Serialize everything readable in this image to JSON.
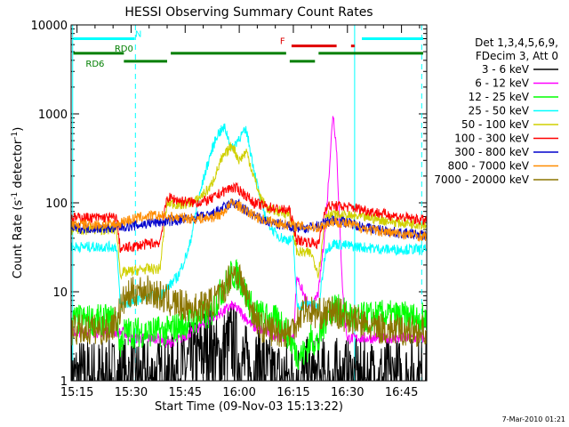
{
  "chart_data": {
    "type": "line",
    "title": "HESSI Observing Summary Count Rates",
    "xlabel": "Start Time (09-Nov-03 15:13:22)",
    "ylabel_main": "Count Rate (s",
    "ylabel_sup1": "-1",
    "ylabel_mid": " detector",
    "ylabel_sup2": "-1",
    "ylabel_end": ")",
    "y_scale": "log",
    "xlim_minutes": [
      13.37,
      112
    ],
    "ylim": [
      1,
      10000
    ],
    "x_ticks": [
      {
        "m": 15,
        "label": "15:15"
      },
      {
        "m": 30,
        "label": "15:30"
      },
      {
        "m": 45,
        "label": "15:45"
      },
      {
        "m": 60,
        "label": "16:00"
      },
      {
        "m": 75,
        "label": "16:15"
      },
      {
        "m": 90,
        "label": "16:30"
      },
      {
        "m": 105,
        "label": "16:45"
      }
    ],
    "y_ticks": [
      {
        "v": 1,
        "label": "1"
      },
      {
        "v": 10,
        "label": "10"
      },
      {
        "v": 100,
        "label": "100"
      },
      {
        "v": 1000,
        "label": "1000"
      },
      {
        "v": 10000,
        "label": "10000"
      }
    ],
    "legend_header": [
      "Det 1,3,4,5,6,9,",
      "FDecim 3, Att 0"
    ],
    "legend_placement": "right",
    "series": [
      {
        "name": "3 - 6 keV",
        "color": "#000000",
        "points": [
          [
            14,
            1
          ],
          [
            40,
            1
          ],
          [
            42,
            1.2
          ],
          [
            48,
            1.6
          ],
          [
            50,
            2.2
          ],
          [
            52,
            2.6
          ],
          [
            54,
            1.6
          ],
          [
            56,
            2.2
          ],
          [
            58,
            2.8
          ],
          [
            60,
            1.7
          ],
          [
            62,
            1.4
          ],
          [
            64,
            1.2
          ],
          [
            66,
            1.6
          ],
          [
            68,
            1.1
          ],
          [
            70,
            1
          ],
          [
            112,
            1
          ]
        ]
      },
      {
        "name": "6 - 12 keV",
        "color": "#ff00ff",
        "points": [
          [
            14,
            3.5
          ],
          [
            28,
            3.5
          ],
          [
            30,
            3
          ],
          [
            38,
            3
          ],
          [
            40,
            2.6
          ],
          [
            44,
            3
          ],
          [
            48,
            3.8
          ],
          [
            52,
            5
          ],
          [
            55,
            5.8
          ],
          [
            58,
            7
          ],
          [
            60,
            6.2
          ],
          [
            64,
            4
          ],
          [
            68,
            3.5
          ],
          [
            72,
            3
          ],
          [
            75,
            3
          ],
          [
            76,
            15
          ],
          [
            78,
            9
          ],
          [
            80,
            6
          ],
          [
            82,
            10
          ],
          [
            84,
            60
          ],
          [
            85,
            250
          ],
          [
            86,
            1050
          ],
          [
            87,
            400
          ],
          [
            88,
            40
          ],
          [
            89,
            6
          ],
          [
            90,
            3
          ],
          [
            112,
            3
          ]
        ]
      },
      {
        "name": "12 - 25 keV",
        "color": "#00ff00",
        "points": [
          [
            14,
            4.8
          ],
          [
            26,
            4.8
          ],
          [
            27,
            2.5
          ],
          [
            28,
            3.5
          ],
          [
            30,
            3.5
          ],
          [
            40,
            3.6
          ],
          [
            44,
            4.2
          ],
          [
            48,
            5
          ],
          [
            52,
            5.6
          ],
          [
            55,
            10
          ],
          [
            58,
            16
          ],
          [
            60,
            15
          ],
          [
            62,
            9
          ],
          [
            64,
            6
          ],
          [
            68,
            5
          ],
          [
            72,
            4.5
          ],
          [
            76,
            2
          ],
          [
            78,
            2
          ],
          [
            80,
            3
          ],
          [
            82,
            2.6
          ],
          [
            84,
            5
          ],
          [
            86,
            7
          ],
          [
            88,
            6
          ],
          [
            92,
            5
          ],
          [
            100,
            5.4
          ],
          [
            112,
            5
          ]
        ]
      },
      {
        "name": "25 - 50 keV",
        "color": "#00ffff",
        "points": [
          [
            14,
            32
          ],
          [
            26,
            32
          ],
          [
            27,
            7
          ],
          [
            30,
            7.5
          ],
          [
            33,
            8.5
          ],
          [
            38,
            9
          ],
          [
            40,
            11
          ],
          [
            43,
            15
          ],
          [
            46,
            30
          ],
          [
            48,
            80
          ],
          [
            50,
            180
          ],
          [
            52,
            350
          ],
          [
            54,
            600
          ],
          [
            56,
            700
          ],
          [
            58,
            400
          ],
          [
            60,
            550
          ],
          [
            62,
            650
          ],
          [
            64,
            250
          ],
          [
            66,
            100
          ],
          [
            68,
            60
          ],
          [
            70,
            45
          ],
          [
            72,
            40
          ],
          [
            74,
            38
          ],
          [
            75,
            38
          ],
          [
            76,
            7
          ],
          [
            78,
            7
          ],
          [
            80,
            7.5
          ],
          [
            82,
            6.5
          ],
          [
            84,
            30
          ],
          [
            86,
            35
          ],
          [
            90,
            33
          ],
          [
            100,
            30
          ],
          [
            112,
            30
          ]
        ]
      },
      {
        "name": "50 - 100 keV",
        "color": "#d0d000",
        "points": [
          [
            14,
            50
          ],
          [
            26,
            50
          ],
          [
            27,
            16
          ],
          [
            30,
            17
          ],
          [
            34,
            18
          ],
          [
            38,
            18
          ],
          [
            40,
            100
          ],
          [
            44,
            95
          ],
          [
            48,
            105
          ],
          [
            52,
            150
          ],
          [
            55,
            300
          ],
          [
            58,
            450
          ],
          [
            60,
            300
          ],
          [
            62,
            380
          ],
          [
            64,
            200
          ],
          [
            66,
            110
          ],
          [
            68,
            85
          ],
          [
            72,
            78
          ],
          [
            74,
            75
          ],
          [
            76,
            28
          ],
          [
            80,
            27
          ],
          [
            82,
            16
          ],
          [
            84,
            75
          ],
          [
            88,
            72
          ],
          [
            96,
            68
          ],
          [
            104,
            60
          ],
          [
            112,
            57
          ]
        ]
      },
      {
        "name": "100 - 300 keV",
        "color": "#ff0000",
        "points": [
          [
            14,
            68
          ],
          [
            26,
            68
          ],
          [
            27,
            30
          ],
          [
            30,
            32
          ],
          [
            34,
            34
          ],
          [
            38,
            36
          ],
          [
            40,
            115
          ],
          [
            44,
            105
          ],
          [
            48,
            100
          ],
          [
            52,
            108
          ],
          [
            55,
            130
          ],
          [
            58,
            150
          ],
          [
            60,
            140
          ],
          [
            62,
            120
          ],
          [
            64,
            100
          ],
          [
            68,
            90
          ],
          [
            72,
            83
          ],
          [
            74,
            82
          ],
          [
            76,
            38
          ],
          [
            80,
            36
          ],
          [
            82,
            34
          ],
          [
            84,
            92
          ],
          [
            88,
            92
          ],
          [
            92,
            88
          ],
          [
            100,
            75
          ],
          [
            106,
            68
          ],
          [
            112,
            63
          ]
        ]
      },
      {
        "name": "300 - 800 keV",
        "color": "#0000cc",
        "points": [
          [
            14,
            52
          ],
          [
            26,
            52
          ],
          [
            28,
            54
          ],
          [
            32,
            56
          ],
          [
            36,
            60
          ],
          [
            40,
            62
          ],
          [
            44,
            64
          ],
          [
            48,
            68
          ],
          [
            52,
            72
          ],
          [
            55,
            85
          ],
          [
            58,
            100
          ],
          [
            60,
            95
          ],
          [
            62,
            80
          ],
          [
            66,
            65
          ],
          [
            70,
            58
          ],
          [
            74,
            54
          ],
          [
            78,
            52
          ],
          [
            82,
            55
          ],
          [
            86,
            65
          ],
          [
            90,
            60
          ],
          [
            96,
            52
          ],
          [
            104,
            46
          ],
          [
            112,
            43
          ]
        ]
      },
      {
        "name": "800 - 7000 keV",
        "color": "#ff8c00",
        "points": [
          [
            14,
            57
          ],
          [
            26,
            57
          ],
          [
            28,
            62
          ],
          [
            32,
            68
          ],
          [
            36,
            72
          ],
          [
            40,
            70
          ],
          [
            44,
            68
          ],
          [
            48,
            66
          ],
          [
            52,
            68
          ],
          [
            55,
            75
          ],
          [
            58,
            100
          ],
          [
            60,
            92
          ],
          [
            62,
            80
          ],
          [
            66,
            66
          ],
          [
            70,
            60
          ],
          [
            74,
            56
          ],
          [
            78,
            54
          ],
          [
            82,
            53
          ],
          [
            86,
            62
          ],
          [
            90,
            58
          ],
          [
            96,
            50
          ],
          [
            104,
            45
          ],
          [
            112,
            42
          ]
        ]
      },
      {
        "name": "7000 - 20000 keV",
        "color": "#8b7500",
        "points": [
          [
            14,
            3.7
          ],
          [
            24,
            3.8
          ],
          [
            26,
            5
          ],
          [
            28,
            8
          ],
          [
            30,
            9.5
          ],
          [
            32,
            10.5
          ],
          [
            36,
            10
          ],
          [
            40,
            8
          ],
          [
            44,
            7
          ],
          [
            48,
            6.5
          ],
          [
            52,
            7.5
          ],
          [
            55,
            9
          ],
          [
            58,
            17
          ],
          [
            60,
            15
          ],
          [
            62,
            9
          ],
          [
            64,
            6
          ],
          [
            66,
            4
          ],
          [
            70,
            3.6
          ],
          [
            74,
            3.5
          ],
          [
            78,
            6.5
          ],
          [
            82,
            5.6
          ],
          [
            86,
            6
          ],
          [
            90,
            5.2
          ],
          [
            96,
            4
          ],
          [
            104,
            3.7
          ],
          [
            112,
            3.6
          ]
        ]
      }
    ],
    "flag_bars": [
      {
        "label": "N",
        "color": "#00ffff",
        "segments": [
          [
            14,
            31
          ],
          [
            94,
            111
          ]
        ],
        "row_value": 7000,
        "label_at": 32
      },
      {
        "label": "F",
        "color": "#e00000",
        "segments": [
          [
            74.5,
            87
          ],
          [
            91,
            92
          ]
        ],
        "row_value": 5800,
        "label_at": 72
      },
      {
        "label": "RD0",
        "color": "#007f00",
        "segments": [
          [
            14,
            28
          ],
          [
            41,
            73
          ],
          [
            82,
            111
          ]
        ],
        "row_value": 4800,
        "label_at": 28
      },
      {
        "label": "RD6",
        "color": "#007f00",
        "segments": [
          [
            28,
            40
          ],
          [
            74,
            81
          ]
        ],
        "row_value": 3900,
        "label_at": 20
      }
    ],
    "vertical_lines": [
      {
        "m": 13.8,
        "style": "solid",
        "color": "#00ffff"
      },
      {
        "m": 31.2,
        "style": "dashed",
        "color": "#00ffff"
      },
      {
        "m": 92.0,
        "style": "solid",
        "color": "#00ffff"
      },
      {
        "m": 110.6,
        "style": "dashed",
        "color": "#00ffff"
      }
    ],
    "footer_date": "7-Mar-2010 01:21"
  }
}
